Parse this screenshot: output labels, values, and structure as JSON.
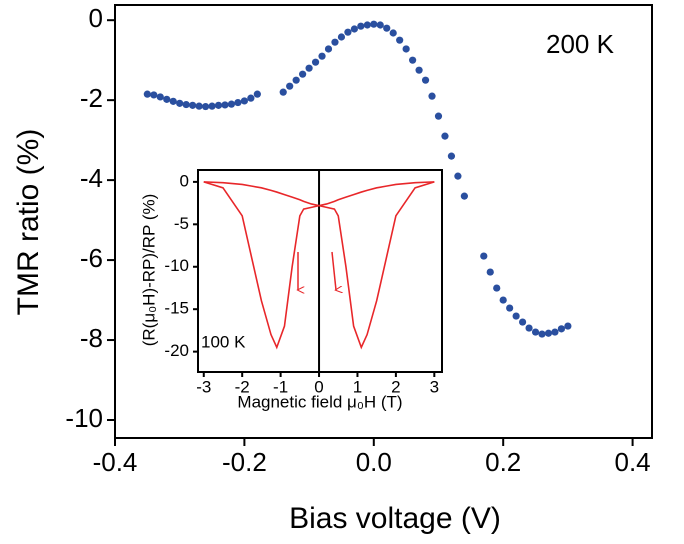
{
  "chart_data": [
    {
      "type": "scatter",
      "xlabel": "Bias voltage (V)",
      "ylabel": "TMR ratio (%)",
      "annotation": "200 K",
      "xlim": [
        -0.4,
        0.43
      ],
      "ylim": [
        -10.45,
        0.38
      ],
      "xticks": [
        -0.4,
        -0.2,
        {
          "value": 0,
          "label": "0.0"
        },
        0.2,
        0.4
      ],
      "yticks": [
        0,
        -2,
        -4,
        -6,
        -8,
        -10
      ],
      "series": [
        {
          "color": "#2a4f9f",
          "x": [
            -0.35,
            -0.34,
            -0.33,
            -0.32,
            -0.31,
            -0.3,
            -0.29,
            -0.28,
            -0.27,
            -0.26,
            -0.25,
            -0.24,
            -0.23,
            -0.22,
            -0.21,
            -0.2,
            -0.19,
            -0.18,
            -0.14,
            -0.13,
            -0.12,
            -0.11,
            -0.1,
            -0.09,
            -0.08,
            -0.07,
            -0.06,
            -0.05,
            -0.04,
            -0.03,
            -0.02,
            -0.01,
            0,
            0.01,
            0.02,
            0.03,
            0.04,
            0.05,
            0.06,
            0.07,
            0.08,
            0.09,
            0.1,
            0.11,
            0.12,
            0.13,
            0.14,
            0.17,
            0.18,
            0.19,
            0.2,
            0.21,
            0.22,
            0.23,
            0.24,
            0.25,
            0.26,
            0.27,
            0.28,
            0.29,
            0.3
          ],
          "values": [
            -1.85,
            -1.87,
            -1.92,
            -1.98,
            -2.03,
            -2.08,
            -2.11,
            -2.13,
            -2.15,
            -2.16,
            -2.15,
            -2.13,
            -2.12,
            -2.1,
            -2.06,
            -2.02,
            -1.95,
            -1.85,
            -1.8,
            -1.65,
            -1.5,
            -1.35,
            -1.2,
            -1.05,
            -0.9,
            -0.72,
            -0.55,
            -0.42,
            -0.3,
            -0.22,
            -0.15,
            -0.12,
            -0.1,
            -0.12,
            -0.2,
            -0.32,
            -0.5,
            -0.72,
            -1.0,
            -1.25,
            -1.5,
            -1.9,
            -2.4,
            -2.9,
            -3.4,
            -3.9,
            -4.4,
            -5.9,
            -6.3,
            -6.7,
            -7.0,
            -7.2,
            -7.4,
            -7.55,
            -7.7,
            -7.8,
            -7.85,
            -7.83,
            -7.8,
            -7.72,
            -7.65
          ]
        }
      ]
    },
    {
      "type": "line",
      "xlabel": "Magnetic field μ₀H (T)",
      "ylabel": "(R(μ₀H)-RP)/RP (%)",
      "annotation": "100 K",
      "xlim": [
        -3.15,
        3.2
      ],
      "ylim": [
        -22.4,
        1.4
      ],
      "xticks": [
        -3,
        -2,
        -1,
        0,
        1,
        2,
        3
      ],
      "yticks": [
        0,
        -5,
        -10,
        -15,
        -20
      ],
      "x": [
        -3,
        -2.5,
        -2,
        -1.75,
        -1.5,
        -1.25,
        -1.1,
        -0.9,
        -0.7,
        -0.5,
        -0.4,
        -0.2,
        0,
        0.2,
        0.4,
        0.5,
        0.7,
        0.9,
        1.1,
        1.25,
        1.5,
        1.75,
        2,
        2.5,
        3
      ],
      "series": [
        {
          "color": "#e8272a",
          "values": [
            0,
            -0.7,
            -4,
            -9,
            -14,
            -18,
            -19.5,
            -17,
            -10,
            -4,
            -3.2,
            -3,
            -2.8,
            -3,
            -3.2,
            -4,
            -10,
            -17,
            -19.5,
            -18,
            -14,
            -9,
            -4,
            -0.7,
            0
          ]
        },
        {
          "color": "#e8272a",
          "values": [
            0,
            -0.1,
            -0.3,
            -0.5,
            -0.7,
            -1,
            -1.2,
            -1.5,
            -1.8,
            -2.1,
            -2.3,
            -2.6,
            -2.8,
            -2.6,
            -2.3,
            -2.1,
            -1.8,
            -1.5,
            -1.2,
            -1,
            -0.7,
            -0.5,
            -0.3,
            -0.1,
            0
          ]
        }
      ]
    }
  ]
}
